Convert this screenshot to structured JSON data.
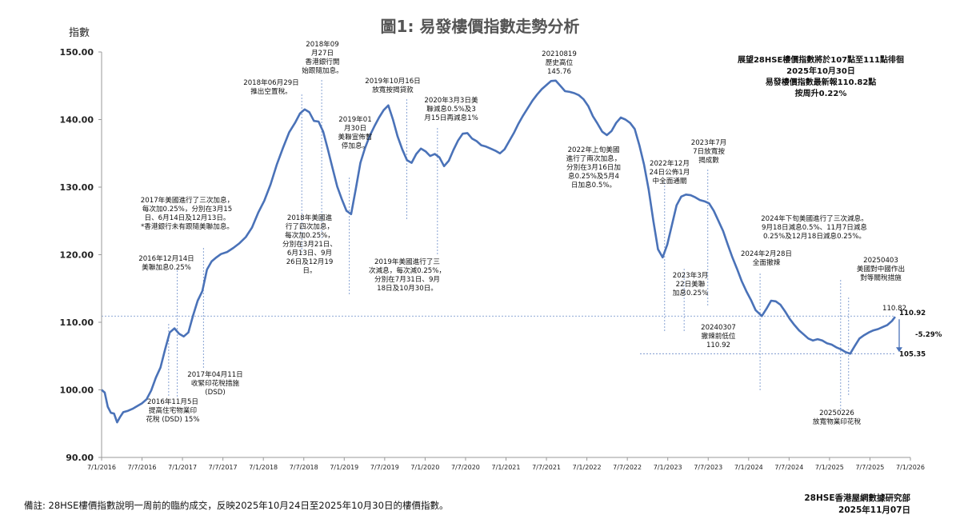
{
  "chart_data": {
    "type": "line",
    "title": "圖1: 易發樓價指數走勢分析",
    "ylabel": "指數",
    "ylim": [
      90,
      150
    ],
    "yticks": [
      "90.00",
      "100.00",
      "110.00",
      "120.00",
      "130.00",
      "140.00",
      "150.00"
    ],
    "xticks": [
      "7/1/2016",
      "7/7/2016",
      "7/1/2017",
      "7/7/2017",
      "7/1/2018",
      "7/7/2018",
      "7/1/2019",
      "7/7/2019",
      "7/1/2020",
      "7/7/2020",
      "7/1/2021",
      "7/7/2021",
      "7/1/2022",
      "7/7/2022",
      "7/1/2023",
      "7/7/2023",
      "7/1/2024",
      "7/7/2024",
      "7/1/2025",
      "7/7/2025",
      "7/1/2026"
    ],
    "line_color": "#4A72B8",
    "series": [
      {
        "points": [
          [
            "2016-01-07",
            100.0
          ],
          [
            "2016-01-21",
            99.6
          ],
          [
            "2016-02-04",
            97.5
          ],
          [
            "2016-02-18",
            96.6
          ],
          [
            "2016-03-03",
            96.5
          ],
          [
            "2016-03-17",
            95.2
          ],
          [
            "2016-03-31",
            96.0
          ],
          [
            "2016-04-14",
            96.7
          ],
          [
            "2016-05-05",
            96.9
          ],
          [
            "2016-05-26",
            97.2
          ],
          [
            "2016-06-16",
            97.6
          ],
          [
            "2016-07-07",
            98.0
          ],
          [
            "2016-07-28",
            98.6
          ],
          [
            "2016-08-18",
            99.9
          ],
          [
            "2016-09-08",
            101.8
          ],
          [
            "2016-09-29",
            103.3
          ],
          [
            "2016-10-20",
            106.0
          ],
          [
            "2016-11-10",
            108.5
          ],
          [
            "2016-12-01",
            109.1
          ],
          [
            "2016-12-22",
            108.3
          ],
          [
            "2017-01-12",
            107.9
          ],
          [
            "2017-02-02",
            108.5
          ],
          [
            "2017-02-23",
            111.0
          ],
          [
            "2017-03-16",
            113.2
          ],
          [
            "2017-04-06",
            114.6
          ],
          [
            "2017-04-27",
            117.8
          ],
          [
            "2017-05-18",
            119.0
          ],
          [
            "2017-06-08",
            119.6
          ],
          [
            "2017-06-29",
            120.1
          ],
          [
            "2017-07-27",
            120.4
          ],
          [
            "2017-08-24",
            121.0
          ],
          [
            "2017-09-21",
            121.7
          ],
          [
            "2017-10-19",
            122.6
          ],
          [
            "2017-11-16",
            124.0
          ],
          [
            "2017-12-14",
            126.2
          ],
          [
            "2018-01-11",
            128.0
          ],
          [
            "2018-02-08",
            130.4
          ],
          [
            "2018-03-08",
            133.3
          ],
          [
            "2018-04-05",
            135.8
          ],
          [
            "2018-05-03",
            138.1
          ],
          [
            "2018-05-31",
            139.6
          ],
          [
            "2018-06-21",
            140.9
          ],
          [
            "2018-07-12",
            141.5
          ],
          [
            "2018-08-02",
            141.1
          ],
          [
            "2018-08-23",
            139.8
          ],
          [
            "2018-09-13",
            139.7
          ],
          [
            "2018-10-04",
            138.2
          ],
          [
            "2018-10-25",
            135.6
          ],
          [
            "2018-11-15",
            132.8
          ],
          [
            "2018-12-06",
            130.1
          ],
          [
            "2018-12-27",
            128.2
          ],
          [
            "2019-01-17",
            126.5
          ],
          [
            "2019-02-07",
            126.0
          ],
          [
            "2019-02-28",
            129.7
          ],
          [
            "2019-03-21",
            133.6
          ],
          [
            "2019-04-11",
            135.8
          ],
          [
            "2019-05-02",
            137.6
          ],
          [
            "2019-05-23",
            139.0
          ],
          [
            "2019-06-13",
            140.3
          ],
          [
            "2019-07-04",
            141.4
          ],
          [
            "2019-07-25",
            142.1
          ],
          [
            "2019-08-15",
            140.0
          ],
          [
            "2019-09-05",
            137.5
          ],
          [
            "2019-09-26",
            135.6
          ],
          [
            "2019-10-17",
            134.0
          ],
          [
            "2019-11-07",
            133.6
          ],
          [
            "2019-11-28",
            134.9
          ],
          [
            "2019-12-19",
            135.7
          ],
          [
            "2020-01-09",
            135.3
          ],
          [
            "2020-01-30",
            134.6
          ],
          [
            "2020-02-20",
            134.9
          ],
          [
            "2020-03-12",
            134.4
          ],
          [
            "2020-04-02",
            133.1
          ],
          [
            "2020-04-23",
            133.9
          ],
          [
            "2020-05-14",
            135.5
          ],
          [
            "2020-06-04",
            136.9
          ],
          [
            "2020-06-25",
            137.9
          ],
          [
            "2020-07-16",
            138.0
          ],
          [
            "2020-08-06",
            137.2
          ],
          [
            "2020-08-27",
            136.8
          ],
          [
            "2020-09-17",
            136.2
          ],
          [
            "2020-10-08",
            136.0
          ],
          [
            "2020-10-29",
            135.7
          ],
          [
            "2020-11-19",
            135.4
          ],
          [
            "2020-12-10",
            135.0
          ],
          [
            "2020-12-31",
            135.6
          ],
          [
            "2021-01-21",
            136.8
          ],
          [
            "2021-02-11",
            138.0
          ],
          [
            "2021-03-04",
            139.4
          ],
          [
            "2021-03-25",
            140.6
          ],
          [
            "2021-04-15",
            141.7
          ],
          [
            "2021-05-06",
            142.8
          ],
          [
            "2021-05-27",
            143.7
          ],
          [
            "2021-06-17",
            144.5
          ],
          [
            "2021-07-08",
            145.1
          ],
          [
            "2021-07-29",
            145.7
          ],
          [
            "2021-08-19",
            145.76
          ],
          [
            "2021-09-09",
            145.0
          ],
          [
            "2021-09-30",
            144.2
          ],
          [
            "2021-10-21",
            144.1
          ],
          [
            "2021-11-11",
            143.9
          ],
          [
            "2021-12-02",
            143.6
          ],
          [
            "2021-12-23",
            143.0
          ],
          [
            "2022-01-13",
            142.0
          ],
          [
            "2022-02-03",
            140.5
          ],
          [
            "2022-02-24",
            139.4
          ],
          [
            "2022-03-17",
            138.2
          ],
          [
            "2022-04-07",
            137.7
          ],
          [
            "2022-04-28",
            138.3
          ],
          [
            "2022-05-19",
            139.5
          ],
          [
            "2022-06-09",
            140.3
          ],
          [
            "2022-06-30",
            140.0
          ],
          [
            "2022-07-21",
            139.5
          ],
          [
            "2022-08-11",
            138.6
          ],
          [
            "2022-09-01",
            136.2
          ],
          [
            "2022-09-22",
            133.3
          ],
          [
            "2022-10-13",
            129.6
          ],
          [
            "2022-11-03",
            125.0
          ],
          [
            "2022-11-24",
            120.8
          ],
          [
            "2022-12-15",
            119.6
          ],
          [
            "2023-01-05",
            121.5
          ],
          [
            "2023-01-26",
            124.4
          ],
          [
            "2023-02-16",
            127.3
          ],
          [
            "2023-03-09",
            128.6
          ],
          [
            "2023-03-30",
            128.9
          ],
          [
            "2023-04-20",
            128.8
          ],
          [
            "2023-05-11",
            128.5
          ],
          [
            "2023-06-01",
            128.1
          ],
          [
            "2023-06-22",
            127.9
          ],
          [
            "2023-07-13",
            127.6
          ],
          [
            "2023-08-03",
            126.5
          ],
          [
            "2023-08-24",
            125.0
          ],
          [
            "2023-09-14",
            123.5
          ],
          [
            "2023-10-05",
            121.5
          ],
          [
            "2023-10-26",
            119.6
          ],
          [
            "2023-11-16",
            117.9
          ],
          [
            "2023-12-07",
            116.1
          ],
          [
            "2023-12-28",
            114.6
          ],
          [
            "2024-01-18",
            113.3
          ],
          [
            "2024-02-08",
            111.8
          ],
          [
            "2024-03-07",
            110.92
          ],
          [
            "2024-03-28",
            112.0
          ],
          [
            "2024-04-18",
            113.2
          ],
          [
            "2024-05-09",
            113.1
          ],
          [
            "2024-05-30",
            112.6
          ],
          [
            "2024-06-20",
            111.6
          ],
          [
            "2024-07-11",
            110.5
          ],
          [
            "2024-08-01",
            109.6
          ],
          [
            "2024-08-22",
            108.8
          ],
          [
            "2024-09-12",
            108.2
          ],
          [
            "2024-10-03",
            107.6
          ],
          [
            "2024-10-24",
            107.3
          ],
          [
            "2024-11-14",
            107.5
          ],
          [
            "2024-12-05",
            107.3
          ],
          [
            "2024-12-26",
            106.9
          ],
          [
            "2025-01-16",
            106.7
          ],
          [
            "2025-02-06",
            106.3
          ],
          [
            "2025-02-27",
            106.0
          ],
          [
            "2025-03-20",
            105.6
          ],
          [
            "2025-04-10",
            105.35
          ],
          [
            "2025-05-01",
            106.5
          ],
          [
            "2025-05-22",
            107.6
          ],
          [
            "2025-06-12",
            108.1
          ],
          [
            "2025-07-03",
            108.5
          ],
          [
            "2025-07-24",
            108.8
          ],
          [
            "2025-08-14",
            109.0
          ],
          [
            "2025-09-04",
            109.3
          ],
          [
            "2025-09-25",
            109.6
          ],
          [
            "2025-10-16",
            110.2
          ],
          [
            "2025-10-30",
            110.82
          ]
        ]
      }
    ],
    "reference_lines": [
      {
        "value": 110.92,
        "label": "110.92"
      },
      {
        "value": 105.35,
        "label": "105.35"
      }
    ],
    "change_label": "-5.29%",
    "latest_value_label": "110.82",
    "event_lines": [
      "2016-11-05",
      "2016-12-14",
      "2017-04-11",
      "2018-06-29",
      "2018-09-27",
      "2019-01-30",
      "2019-10-16",
      "2020-03-03",
      "2022-12-24",
      "2023-03-22",
      "2023-07-07",
      "2024-02-28",
      "2025-02-26",
      "2025-04-03"
    ],
    "annotations": [
      {
        "id": "a2016dec",
        "lines": [
          "2016年12月14日",
          "美聯加息0.25%"
        ]
      },
      {
        "id": "a2016nov",
        "lines": [
          "2016年11月5日",
          "提高住宅物業印",
          "花稅 (DSD) 15%"
        ]
      },
      {
        "id": "a2017apr",
        "lines": [
          "2017年04月11日",
          "收緊印花稅措施",
          "(DSD)"
        ]
      },
      {
        "id": "a2017fed",
        "lines": [
          "2017年美國進行了三次加息，",
          "每次加0.25%，分別在3月15",
          "日、6月14日及12月13日。",
          "*香港銀行未有跟隨美聯加息。"
        ]
      },
      {
        "id": "a2018jun",
        "lines": [
          "2018年06月29日",
          "推出空置稅。"
        ]
      },
      {
        "id": "a2018sep",
        "lines": [
          "2018年09",
          "月27日",
          "香港銀行開",
          "始跟隨加息。"
        ]
      },
      {
        "id": "a2018fed",
        "lines": [
          "2018年美國進",
          "行了四次加息，",
          "每次加0.25%，",
          "分別在3月21日、",
          "6月13日、9月",
          "26日及12月19",
          "日。"
        ]
      },
      {
        "id": "a2019jan",
        "lines": [
          "2019年01",
          "月30日",
          "美聯宣佈暫",
          "停加息。"
        ]
      },
      {
        "id": "a2019oct",
        "lines": [
          "2019年10月16日",
          "放寬按揭貸款"
        ]
      },
      {
        "id": "a2019fed",
        "lines": [
          "2019年美國進行了三",
          "次減息，每次減0.25%，",
          "分別在7月31日、9月",
          "18日及10月30日。"
        ]
      },
      {
        "id": "a2020mar",
        "lines": [
          "2020年3月3日美",
          "聯減息0.5%及3",
          "月15日再減息1%"
        ]
      },
      {
        "id": "a2021peak",
        "lines": [
          "20210819",
          "歷史高位",
          "145.76"
        ]
      },
      {
        "id": "a2022fed",
        "lines": [
          "2022年上旬美國",
          "進行了兩次加息，",
          "分別在3月16日加",
          "息0.25%及5月4",
          "日加息0.5%。"
        ]
      },
      {
        "id": "a2022dec",
        "lines": [
          "2022年12月",
          "24日公佈1月",
          "中全面通關"
        ]
      },
      {
        "id": "a2023mar",
        "lines": [
          "2023年3月",
          "22日美聯",
          "加息0.25%"
        ]
      },
      {
        "id": "a2023jul",
        "lines": [
          "2023年7月",
          "7日放寬按",
          "揭成數"
        ]
      },
      {
        "id": "a2024fed",
        "lines": [
          "2024年下旬美國進行了三次減息。",
          "9月18日減息0.5%、11月7日減息",
          "0.25%及12月18日減息0.25%。"
        ]
      },
      {
        "id": "a2024feb",
        "lines": [
          "2024年2月28日",
          "全面撤辣"
        ]
      },
      {
        "id": "a2024mar",
        "lines": [
          "20240307",
          "撤辣前低位",
          "110.92"
        ]
      },
      {
        "id": "a2025apr",
        "lines": [
          "20250403",
          "美國對中國作出",
          "對等關稅措施"
        ]
      },
      {
        "id": "a2025feb",
        "lines": [
          "20250226",
          "放寬物業印花稅"
        ]
      }
    ],
    "summary_box": [
      "展望28HSE樓價指數將於107點至111點徘徊",
      "2025年10月30日",
      "易發樓價指數最新報110.82點",
      "按周升0.22%"
    ]
  },
  "footer": {
    "note": "備註: 28HSE樓價指數說明一周前的臨約成交，反映2025年10月24日至2025年10月30日的樓價指數。",
    "org": "28HSE香港屋網數據研究部",
    "date": "2025年11月07日"
  }
}
